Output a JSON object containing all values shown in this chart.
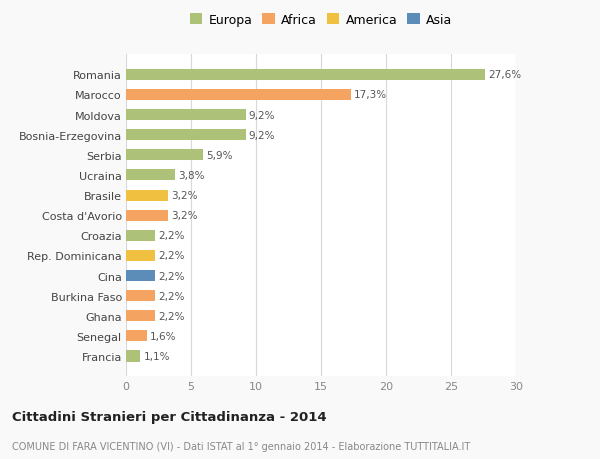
{
  "categories": [
    "Francia",
    "Senegal",
    "Ghana",
    "Burkina Faso",
    "Cina",
    "Rep. Dominicana",
    "Croazia",
    "Costa d'Avorio",
    "Brasile",
    "Ucraina",
    "Serbia",
    "Bosnia-Erzegovina",
    "Moldova",
    "Marocco",
    "Romania"
  ],
  "values": [
    1.1,
    1.6,
    2.2,
    2.2,
    2.2,
    2.2,
    2.2,
    3.2,
    3.2,
    3.8,
    5.9,
    9.2,
    9.2,
    17.3,
    27.6
  ],
  "labels": [
    "1,1%",
    "1,6%",
    "2,2%",
    "2,2%",
    "2,2%",
    "2,2%",
    "2,2%",
    "3,2%",
    "3,2%",
    "3,8%",
    "5,9%",
    "9,2%",
    "9,2%",
    "17,3%",
    "27,6%"
  ],
  "colors": [
    "#adc178",
    "#f4a460",
    "#f4a460",
    "#f4a460",
    "#5b8db8",
    "#f0c040",
    "#adc178",
    "#f4a460",
    "#f0c040",
    "#adc178",
    "#adc178",
    "#adc178",
    "#adc178",
    "#f4a460",
    "#adc178"
  ],
  "legend_labels": [
    "Europa",
    "Africa",
    "America",
    "Asia"
  ],
  "legend_colors": [
    "#adc178",
    "#f4a460",
    "#f0c040",
    "#5b8db8"
  ],
  "title": "Cittadini Stranieri per Cittadinanza - 2014",
  "subtitle": "COMUNE DI FARA VICENTINO (VI) - Dati ISTAT al 1° gennaio 2014 - Elaborazione TUTTITALIA.IT",
  "xlim": [
    0,
    30
  ],
  "xticks": [
    0,
    5,
    10,
    15,
    20,
    25,
    30
  ],
  "background_color": "#f9f9f9",
  "bar_background": "#ffffff",
  "grid_color": "#d8d8d8"
}
